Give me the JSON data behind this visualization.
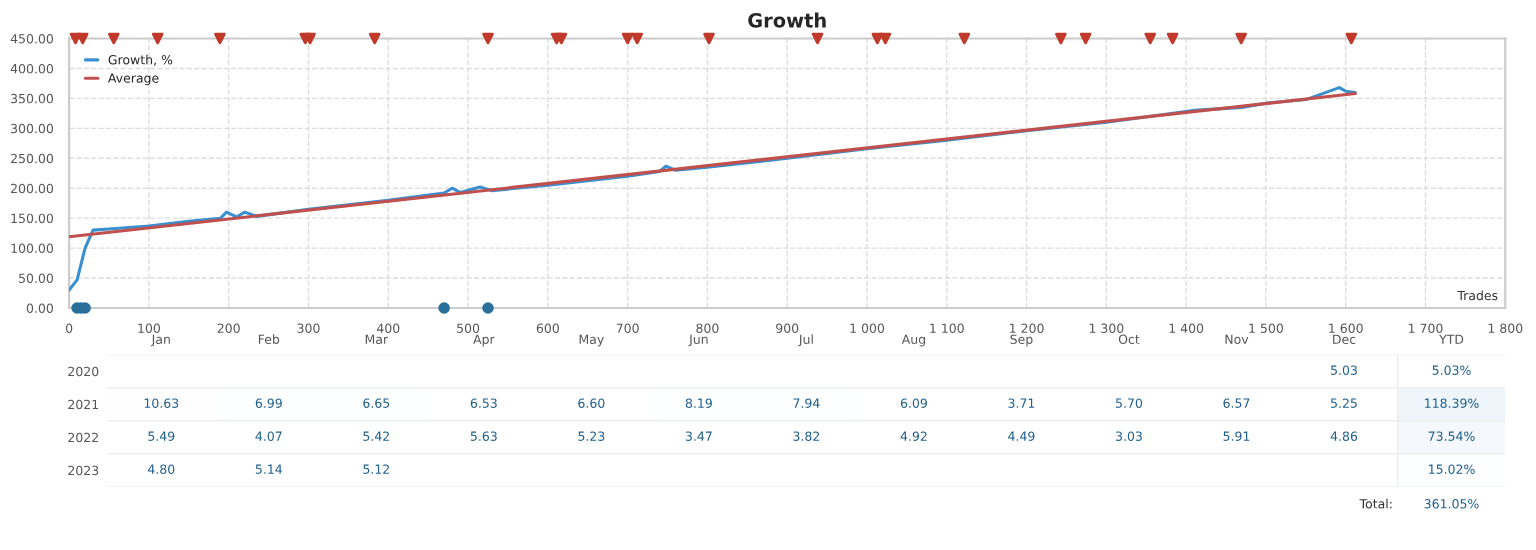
{
  "chart_data": [
    {
      "type": "line",
      "title": "Growth",
      "xlabel": "Trades",
      "xlim": [
        0,
        1800
      ],
      "xticks": [
        0,
        100,
        200,
        300,
        400,
        500,
        600,
        700,
        800,
        900,
        {
          "value": 1000,
          "label": "1 000"
        },
        {
          "value": 1100,
          "label": "1 100"
        },
        {
          "value": 1200,
          "label": "1 200"
        },
        {
          "value": 1300,
          "label": "1 300"
        },
        {
          "value": 1400,
          "label": "1 400"
        },
        {
          "value": 1500,
          "label": "1 500"
        },
        {
          "value": 1600,
          "label": "1 600"
        },
        {
          "value": 1700,
          "label": "1 700"
        },
        {
          "value": 1800,
          "label": "1 800"
        }
      ],
      "ylim": [
        0,
        450
      ],
      "yticks": [
        {
          "value": 0,
          "label": "0.00"
        },
        {
          "value": 50,
          "label": "50.00"
        },
        {
          "value": 100,
          "label": "100.00"
        },
        {
          "value": 150,
          "label": "150.00"
        },
        {
          "value": 200,
          "label": "200.00"
        },
        {
          "value": 250,
          "label": "250.00"
        },
        {
          "value": 300,
          "label": "300.00"
        },
        {
          "value": 350,
          "label": "350.00"
        },
        {
          "value": 400,
          "label": "400.00"
        },
        {
          "value": 450,
          "label": "450.00"
        }
      ],
      "grid": true,
      "legend": "top left",
      "series": [
        {
          "name": "Growth, %",
          "type": "line",
          "color": "#3a8fd0",
          "x": [
            0,
            10,
            20,
            30,
            50,
            100,
            150,
            190,
            197,
            210,
            220,
            235,
            300,
            400,
            470,
            480,
            490,
            515,
            530,
            600,
            700,
            740,
            748,
            760,
            800,
            900,
            1000,
            1100,
            1200,
            1300,
            1400,
            1410,
            1470,
            1500,
            1550,
            1592,
            1600,
            1612
          ],
          "values": [
            30,
            47,
            100,
            130,
            132,
            137,
            145,
            150,
            160,
            152,
            160,
            153,
            165,
            180,
            192,
            200,
            193,
            202,
            196,
            205,
            220,
            228,
            237,
            230,
            235,
            250,
            266,
            280,
            296,
            310,
            328,
            330,
            335,
            342,
            348,
            368,
            362,
            360
          ]
        },
        {
          "name": "Average",
          "type": "line",
          "color": "#c0504d",
          "x": [
            0,
            1612
          ],
          "values": [
            119,
            358
          ]
        },
        {
          "type": "scatter",
          "marker": "triangle",
          "color": "#c0392b",
          "x": [
            8,
            17,
            56,
            111,
            189,
            296,
            302,
            383,
            525,
            611,
            617,
            700,
            712,
            802,
            938,
            1013,
            1023,
            1122,
            1243,
            1274,
            1355,
            1383,
            1469,
            1607
          ],
          "values": [
            450,
            450,
            450,
            450,
            450,
            450,
            450,
            450,
            450,
            450,
            450,
            450,
            450,
            450,
            450,
            450,
            450,
            450,
            450,
            450,
            450,
            450,
            450,
            450
          ]
        },
        {
          "type": "scatter",
          "marker": "circle",
          "color": "#2a6f9a",
          "x": [
            10,
            15,
            20,
            470,
            525
          ],
          "values": [
            0,
            0,
            0,
            0,
            0
          ]
        }
      ]
    },
    {
      "type": "heatmap",
      "categories": [
        "Jan",
        "Feb",
        "Mar",
        "Apr",
        "May",
        "Jun",
        "Jul",
        "Aug",
        "Sep",
        "Oct",
        "Nov",
        "Dec",
        "YTD"
      ],
      "y_categories": [
        "2020",
        "2021",
        "2022",
        "2023"
      ],
      "cells": [
        [
          null,
          null,
          null,
          null,
          null,
          null,
          null,
          null,
          null,
          null,
          null,
          5.03,
          5.03
        ],
        [
          10.63,
          6.99,
          6.65,
          6.53,
          6.6,
          8.19,
          7.94,
          6.09,
          3.71,
          5.7,
          6.57,
          5.25,
          118.39
        ],
        [
          5.49,
          4.07,
          5.42,
          5.63,
          5.23,
          3.47,
          3.82,
          4.92,
          4.49,
          3.03,
          5.91,
          4.86,
          73.54
        ],
        [
          4.8,
          5.14,
          5.12,
          null,
          null,
          null,
          null,
          null,
          null,
          null,
          null,
          null,
          15.02
        ]
      ],
      "cell_labels": [
        [
          null,
          null,
          null,
          null,
          null,
          null,
          null,
          null,
          null,
          null,
          null,
          "5.03",
          "5.03%"
        ],
        [
          "10.63",
          "6.99",
          "6.65",
          "6.53",
          "6.60",
          "8.19",
          "7.94",
          "6.09",
          "3.71",
          "5.70",
          "6.57",
          "5.25",
          "118.39%"
        ],
        [
          "5.49",
          "4.07",
          "5.42",
          "5.63",
          "5.23",
          "3.47",
          "3.82",
          "4.92",
          "4.49",
          "3.03",
          "5.91",
          "4.86",
          "73.54%"
        ],
        [
          "4.80",
          "5.14",
          "5.12",
          null,
          null,
          null,
          null,
          null,
          null,
          null,
          null,
          null,
          "15.02%"
        ]
      ],
      "annotations": [
        "Total:",
        "361.05%"
      ]
    }
  ]
}
